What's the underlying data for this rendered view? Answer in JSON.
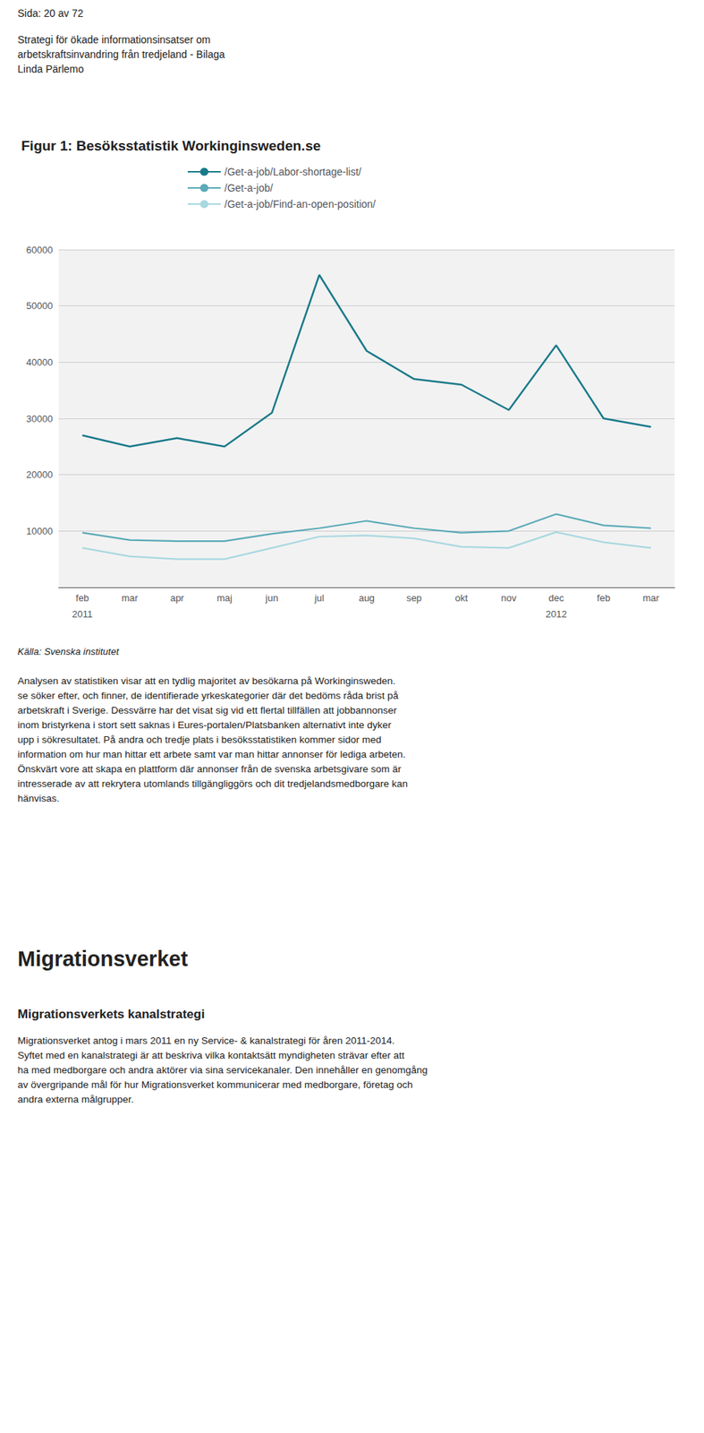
{
  "page_header": "Sida: 20 av 72",
  "sub_header": [
    "Strategi för ökade informationsinsatser om",
    "arbetskraftsinvandring från tredjeland - Bilaga",
    "Linda Pärlemo"
  ],
  "chart_data": {
    "type": "line",
    "title": "Figur 1: Besöksstatistik Workinginsweden.se",
    "categories": [
      "feb",
      "mar",
      "apr",
      "maj",
      "jun",
      "jul",
      "aug",
      "sep",
      "okt",
      "nov",
      "dec",
      "feb",
      "mar"
    ],
    "annotations": [
      {
        "text": "2011",
        "category_index": 0
      },
      {
        "text": "2012",
        "category_index": 10
      }
    ],
    "series": [
      {
        "name": "/Get-a-job/Labor-shortage-list/",
        "color": "#1a7a8a",
        "values": [
          27000,
          25000,
          26500,
          25000,
          31000,
          55500,
          42000,
          37000,
          36000,
          31500,
          43000,
          30000,
          28500
        ]
      },
      {
        "name": "/Get-a-job/",
        "color": "#5aaab8",
        "values": [
          9700,
          8400,
          8200,
          8200,
          9500,
          10500,
          11800,
          10500,
          9700,
          10000,
          13000,
          11000,
          10500
        ]
      },
      {
        "name": "/Get-a-job/Find-an-open-position/",
        "color": "#a8d8e0",
        "values": [
          7000,
          5500,
          5000,
          5000,
          7000,
          9000,
          9200,
          8700,
          7200,
          7000,
          9800,
          8000,
          7000
        ]
      }
    ],
    "ylim": [
      0,
      60000
    ],
    "yticks": [
      {
        "value": 0,
        "label": ""
      },
      10000,
      20000,
      30000,
      40000,
      50000,
      60000
    ],
    "grid": true,
    "legend": "upper left"
  },
  "source": "Källa: Svenska institutet",
  "body": [
    "Analysen av statistiken visar att en tydlig majoritet av besökarna på Workinginsweden.",
    "se söker efter, och finner, de identifierade yrkeskategorier där det bedöms råda brist på",
    "arbetskraft i Sverige. Dessvärre har det visat sig vid ett flertal tillfällen att jobbannonser",
    "inom bristyrkena i stort sett saknas i Eures-portalen/Platsbanken alternativt  inte dyker",
    "upp i sökresultatet. På andra och tredje plats i besöksstatistiken kommer sidor med",
    "information om hur man hittar ett arbete samt var man hittar annonser för lediga arbeten.",
    "Önskvärt vore att skapa en plattform där annonser från de svenska arbetsgivare som är",
    "intresserade av att rekrytera utomlands tillgängliggörs och dit tredjelandsmedborgare kan",
    "hänvisas."
  ],
  "section_title": "Migrationsverket",
  "section_subtitle": "Migrationsverkets kanalstrategi",
  "section_body": [
    "Migrationsverket antog i mars 2011 en ny Service- & kanalstrategi för åren 2011-2014.",
    "Syftet med en kanalstrategi är att beskriva vilka kontaktsätt myndigheten strävar efter att",
    "ha med medborgare och andra aktörer via sina servicekanaler. Den innehåller en genomgång",
    "av övergripande mål för hur Migrationsverket kommunicerar med medborgare, företag och",
    "andra externa målgrupper."
  ]
}
